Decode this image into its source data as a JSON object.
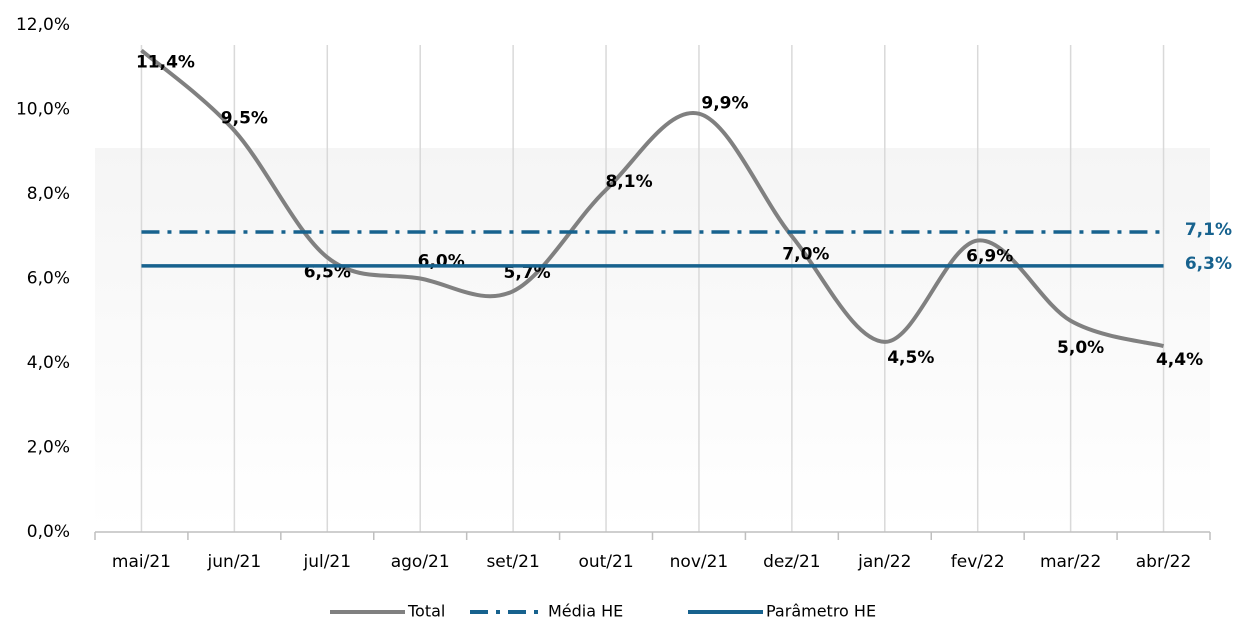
{
  "chart_data": {
    "type": "line",
    "categories": [
      "mai/21",
      "jun/21",
      "jul/21",
      "ago/21",
      "set/21",
      "out/21",
      "nov/21",
      "dez/21",
      "jan/22",
      "fev/22",
      "mar/22",
      "abr/22"
    ],
    "series": [
      {
        "name": "Total",
        "color": "#808080",
        "style": "smooth",
        "values": [
          11.4,
          9.5,
          6.5,
          6.0,
          5.7,
          8.1,
          9.9,
          7.0,
          4.5,
          6.9,
          5.0,
          4.4
        ],
        "value_labels": [
          "11,4%",
          "9,5%",
          "6,5%",
          "6,0%",
          "5,7%",
          "8,1%",
          "9,9%",
          "7,0%",
          "4,5%",
          "6,9%",
          "5,0%",
          "4,4%"
        ]
      },
      {
        "name": "Média HE",
        "color": "#17628e",
        "style": "dash-dot",
        "values": [
          7.1,
          7.1,
          7.1,
          7.1,
          7.1,
          7.1,
          7.1,
          7.1,
          7.1,
          7.1,
          7.1,
          7.1
        ],
        "value_labels": [
          null,
          null,
          null,
          null,
          null,
          null,
          null,
          null,
          null,
          null,
          null,
          "7,1%"
        ]
      },
      {
        "name": "Parâmetro HE",
        "color": "#17628e",
        "style": "solid",
        "values": [
          6.3,
          6.3,
          6.3,
          6.3,
          6.3,
          6.3,
          6.3,
          6.3,
          6.3,
          6.3,
          6.3,
          6.3
        ],
        "value_labels": [
          null,
          null,
          null,
          null,
          null,
          null,
          null,
          null,
          null,
          null,
          null,
          "6,3%"
        ]
      }
    ],
    "ylim": [
      0,
      12
    ],
    "yticks": [
      {
        "value": 0,
        "label": "0,0%"
      },
      {
        "value": 2,
        "label": "2,0%"
      },
      {
        "value": 4,
        "label": "4,0%"
      },
      {
        "value": 6,
        "label": "6,0%"
      },
      {
        "value": 8,
        "label": "8,0%"
      },
      {
        "value": 10,
        "label": "10,0%"
      },
      {
        "value": 12,
        "label": "12,0%"
      }
    ],
    "grid": "x",
    "legend": "bottom"
  }
}
